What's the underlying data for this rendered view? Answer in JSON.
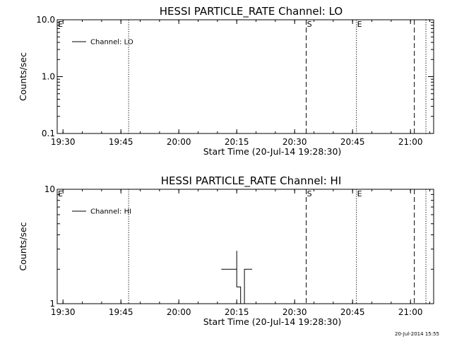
{
  "chart_data": [
    {
      "type": "line",
      "title": "HESSI PARTICLE_RATE Channel: LO",
      "xlabel": "Start Time (20-Jul-14 19:28:30)",
      "ylabel": "Counts/sec",
      "y_scale": "log",
      "ylim": [
        0.1,
        10.0
      ],
      "xlim": [
        "19:28:30",
        "21:06:00"
      ],
      "x_ticks": [
        "19:30",
        "19:45",
        "20:00",
        "20:15",
        "20:30",
        "20:45",
        "21:00"
      ],
      "y_ticks": [
        "0.1",
        "1.0",
        "10.0"
      ],
      "legend": {
        "position": "top-left",
        "entries": [
          "Channel: LO"
        ]
      },
      "series": [
        {
          "name": "Channel: LO",
          "x": [],
          "y": []
        }
      ],
      "vlines": [
        {
          "x": "19:28:30",
          "style": "solid",
          "label": "E"
        },
        {
          "x": "19:47",
          "style": "dotted",
          "label": ""
        },
        {
          "x": "20:33",
          "style": "dashed",
          "label": "S"
        },
        {
          "x": "20:46",
          "style": "dotted",
          "label": "E"
        },
        {
          "x": "21:01",
          "style": "dashed",
          "label": ""
        },
        {
          "x": "21:04",
          "style": "dotted",
          "label": ""
        }
      ]
    },
    {
      "type": "line",
      "title": "HESSI PARTICLE_RATE Channel: HI",
      "xlabel": "Start Time (20-Jul-14 19:28:30)",
      "ylabel": "Counts/sec",
      "y_scale": "log",
      "ylim": [
        1,
        10
      ],
      "xlim": [
        "19:28:30",
        "21:06:00"
      ],
      "x_ticks": [
        "19:30",
        "19:45",
        "20:00",
        "20:15",
        "20:30",
        "20:45",
        "21:00"
      ],
      "y_ticks": [
        "1",
        "10"
      ],
      "legend": {
        "position": "top-left",
        "entries": [
          "Channel: HI"
        ]
      },
      "series": [
        {
          "name": "Channel: HI",
          "x": [
            "20:11",
            "20:15",
            "20:15",
            "20:15",
            "20:16",
            "20:16",
            "20:17",
            "20:17",
            "20:19"
          ],
          "y": [
            2.0,
            2.0,
            2.9,
            1.4,
            1.4,
            1.0,
            1.0,
            2.0,
            2.0
          ]
        }
      ],
      "vlines": [
        {
          "x": "19:28:30",
          "style": "solid",
          "label": "E"
        },
        {
          "x": "19:47",
          "style": "dotted",
          "label": ""
        },
        {
          "x": "20:33",
          "style": "dashed",
          "label": "S"
        },
        {
          "x": "20:46",
          "style": "dotted",
          "label": "E"
        },
        {
          "x": "21:01",
          "style": "dashed",
          "label": ""
        },
        {
          "x": "21:04",
          "style": "dotted",
          "label": ""
        }
      ]
    }
  ],
  "footer": {
    "timestamp": "20-Jul-2014 15:55"
  }
}
